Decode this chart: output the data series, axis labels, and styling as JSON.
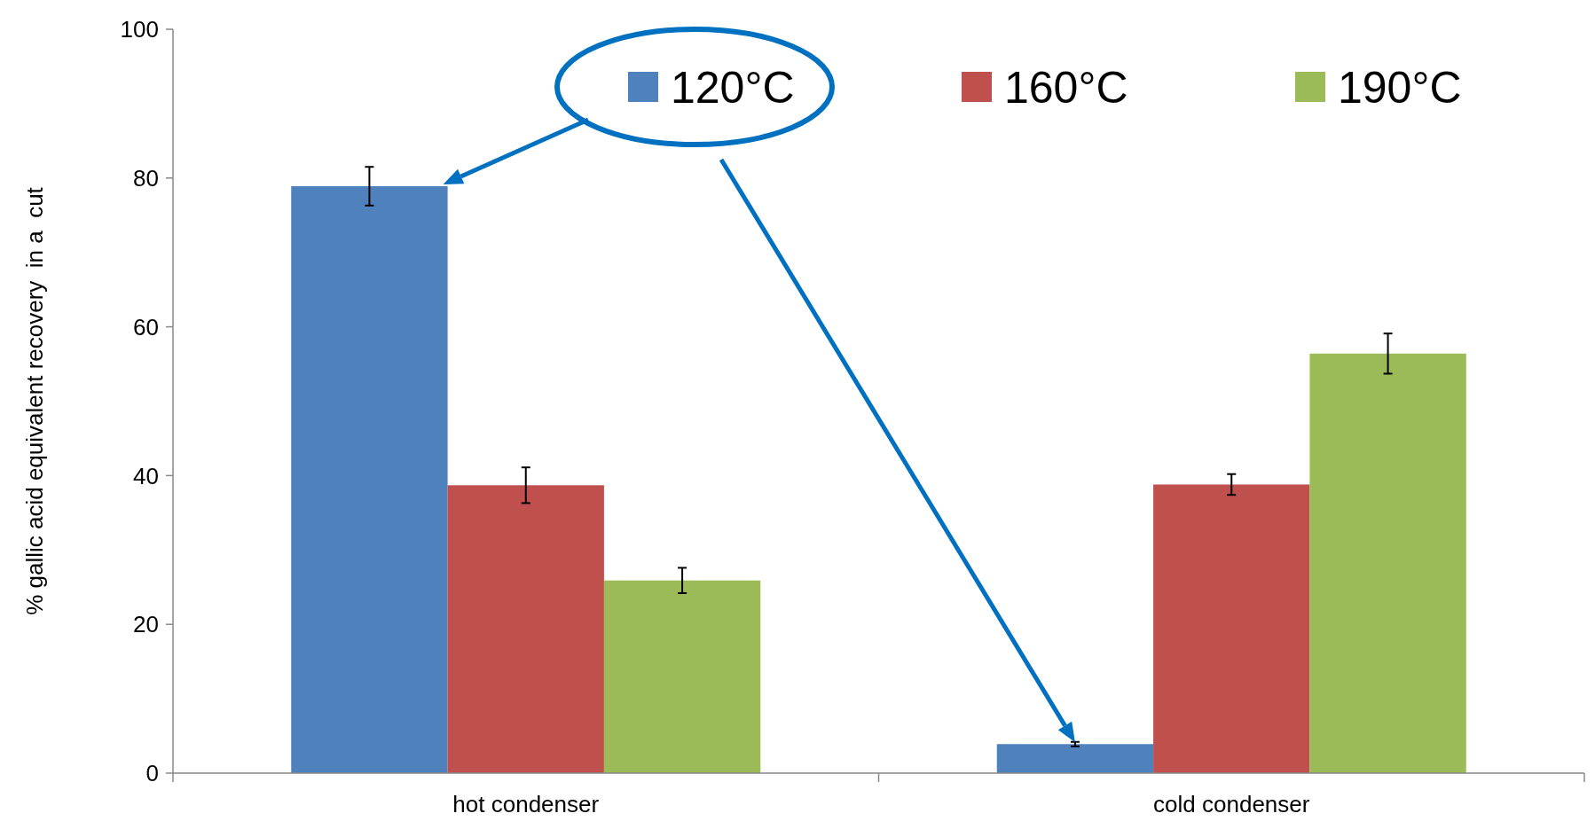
{
  "chart_data": {
    "type": "bar",
    "ylabel": "% gallic acid equivalent recovery  in a  cut",
    "categories": [
      "hot condenser",
      "cold condenser"
    ],
    "series": [
      {
        "name": "120°C",
        "color": "#4f81bd",
        "values": [
          78.9,
          3.9
        ],
        "errors": [
          2.6,
          0.3
        ]
      },
      {
        "name": "160°C",
        "color": "#c0504d",
        "values": [
          38.7,
          38.8
        ],
        "errors": [
          2.4,
          1.4
        ]
      },
      {
        "name": "190°C",
        "color": "#9bbb59",
        "values": [
          25.9,
          56.4
        ],
        "errors": [
          1.7,
          2.7
        ]
      }
    ],
    "ylim": [
      0,
      100
    ],
    "yticks": [
      0,
      20,
      40,
      60,
      80,
      100
    ],
    "grid": false,
    "legend": "top"
  }
}
